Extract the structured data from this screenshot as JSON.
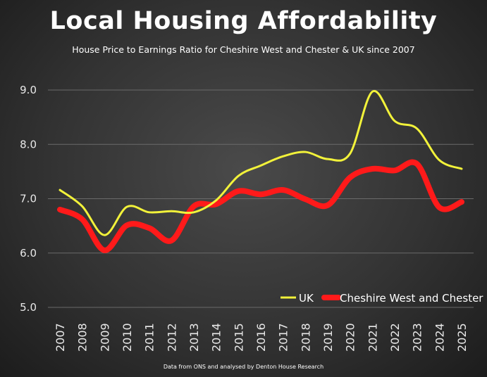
{
  "chart_data": {
    "type": "line",
    "title": "Local Housing Affordability",
    "subtitle": "House Price to Earnings Ratio for Cheshire West and Chester & UK since 2007",
    "footer": "Data from ONS and analysed by Denton House Research",
    "xlabel": "",
    "ylabel": "",
    "x": [
      "2007",
      "2008",
      "2009",
      "2010",
      "2011",
      "2012",
      "2013",
      "2014",
      "2015",
      "2016",
      "2017",
      "2018",
      "2019",
      "2020",
      "2021",
      "2022",
      "2023",
      "2024",
      "2025"
    ],
    "ylim": [
      5.0,
      9.0
    ],
    "yticks": [
      "5.0",
      "6.0",
      "7.0",
      "8.0",
      "9.0"
    ],
    "grid": true,
    "legend": "bottom-right",
    "series": [
      {
        "name": "UK",
        "color": "#f2f23a",
        "values": [
          7.16,
          6.86,
          6.33,
          6.85,
          6.75,
          6.77,
          6.75,
          6.97,
          7.42,
          7.61,
          7.78,
          7.86,
          7.73,
          7.83,
          8.97,
          8.43,
          8.29,
          7.71,
          7.55
        ]
      },
      {
        "name": "Cheshire West and Chester",
        "color": "#ff1a1a",
        "values": [
          6.8,
          6.62,
          6.05,
          6.51,
          6.46,
          6.23,
          6.86,
          6.9,
          7.14,
          7.08,
          7.16,
          6.99,
          6.88,
          7.39,
          7.55,
          7.52,
          7.64,
          6.84,
          6.94
        ]
      }
    ]
  }
}
